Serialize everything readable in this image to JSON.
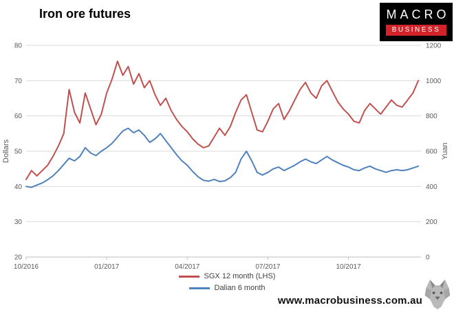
{
  "title": "Iron ore futures",
  "logo": {
    "line1": "MACRO",
    "line2": "BUSINESS"
  },
  "footer": {
    "url": "www.macrobusiness.com.au"
  },
  "colors": {
    "red": "#C0504D",
    "blue": "#4F81BD",
    "grid": "#D9D9D9",
    "axis_line": "#BFBFBF",
    "tick_text": "#595959",
    "logo_red": "#D2232A"
  },
  "chart_data": {
    "type": "line",
    "title": "Iron ore futures",
    "x_unit": "months since 10/2016",
    "x_domain": [
      0,
      14.7
    ],
    "x_ticks": [
      {
        "pos": 0,
        "label": "10/2016"
      },
      {
        "pos": 3,
        "label": "01/2017"
      },
      {
        "pos": 6,
        "label": "04/2017"
      },
      {
        "pos": 9,
        "label": "07/2017"
      },
      {
        "pos": 12,
        "label": "10/2017"
      }
    ],
    "left_axis": {
      "label": "Dollars",
      "min": 20,
      "max": 80,
      "tick_step": 10
    },
    "right_axis": {
      "label": "Yuan",
      "min": 0,
      "max": 1200,
      "tick_step": 200
    },
    "grid": true,
    "legend_position": "bottom",
    "x": [
      0,
      0.2,
      0.4,
      0.6,
      0.8,
      1,
      1.2,
      1.4,
      1.6,
      1.8,
      2,
      2.2,
      2.4,
      2.6,
      2.8,
      3,
      3.2,
      3.4,
      3.6,
      3.8,
      4,
      4.2,
      4.4,
      4.6,
      4.8,
      5,
      5.2,
      5.4,
      5.6,
      5.8,
      6,
      6.2,
      6.4,
      6.6,
      6.8,
      7,
      7.2,
      7.4,
      7.6,
      7.8,
      8,
      8.2,
      8.4,
      8.6,
      8.8,
      9,
      9.2,
      9.4,
      9.6,
      9.8,
      10,
      10.2,
      10.4,
      10.6,
      10.8,
      11,
      11.2,
      11.4,
      11.6,
      11.8,
      12,
      12.2,
      12.4,
      12.6,
      12.8,
      13,
      13.2,
      13.4,
      13.6,
      13.8,
      14,
      14.2,
      14.4,
      14.6
    ],
    "series": [
      {
        "name": "SGX 12 month (LHS)",
        "axis": "left",
        "color": "#C0504D",
        "values": [
          42,
          44.5,
          43,
          44.5,
          46,
          48.5,
          51.5,
          55,
          67.5,
          61,
          58,
          66.5,
          62,
          57.5,
          60.5,
          66.5,
          70.5,
          75.5,
          71.5,
          74,
          69,
          72,
          68,
          70,
          66,
          63,
          65,
          61.5,
          59,
          57,
          55.5,
          53.5,
          52,
          51,
          51.5,
          54,
          56.5,
          54.5,
          57,
          61,
          64.5,
          66,
          61,
          56,
          55.5,
          58.5,
          62,
          63.5,
          59,
          61.5,
          64.5,
          67.5,
          69.5,
          66.5,
          65,
          68.5,
          70,
          67,
          64,
          62,
          60.5,
          58.5,
          58,
          61.5,
          63.5,
          62,
          60.5,
          62.5,
          64.5,
          63,
          62.5,
          64.5,
          66.5,
          70
        ]
      },
      {
        "name": "Dalian 6 month",
        "axis": "right",
        "color": "#4F81BD",
        "values": [
          400,
          395,
          408,
          420,
          438,
          460,
          490,
          525,
          560,
          545,
          570,
          620,
          590,
          575,
          600,
          620,
          645,
          680,
          715,
          730,
          705,
          720,
          690,
          650,
          670,
          700,
          660,
          620,
          580,
          545,
          520,
          485,
          455,
          435,
          430,
          440,
          428,
          432,
          450,
          480,
          555,
          600,
          545,
          480,
          465,
          480,
          500,
          510,
          490,
          505,
          520,
          540,
          555,
          540,
          530,
          550,
          570,
          550,
          535,
          520,
          510,
          495,
          490,
          505,
          515,
          500,
          490,
          480,
          490,
          495,
          490,
          495,
          505,
          515
        ]
      }
    ]
  }
}
